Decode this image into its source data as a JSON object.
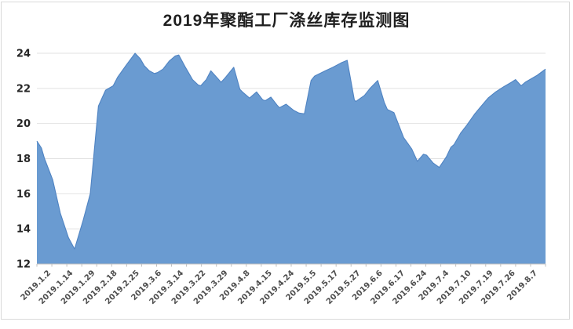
{
  "chart_data": {
    "type": "area",
    "title": "2019年聚酯工厂涤丝库存监测图",
    "xlabel": "",
    "ylabel": "",
    "ylim": [
      12,
      24
    ],
    "y_ticks": [
      12,
      14,
      16,
      18,
      20,
      22,
      24
    ],
    "grid": true,
    "legend_position": "none",
    "categories": [
      "2019.1.2",
      "2019.1.14",
      "2019.1.29",
      "2019.2.18",
      "2019.2.25",
      "2019.3.6",
      "2019.3.14",
      "2019.3.22",
      "2019.3.29",
      "2019.4.8",
      "2019.4.15",
      "2019.4.24",
      "2019.5.5",
      "2019.5.17",
      "2019.5.27",
      "2019.6.6",
      "2019.6.17",
      "2019.6.24",
      "2019.7.4",
      "2019.7.10",
      "2019.7.19",
      "2019.7.26",
      "2019.8.7"
    ],
    "series": [
      {
        "name": "涤丝库存",
        "points": [
          [
            0.0,
            19.0
          ],
          [
            0.009,
            18.6
          ],
          [
            0.015,
            18.0
          ],
          [
            0.031,
            16.8
          ],
          [
            0.046,
            14.9
          ],
          [
            0.062,
            13.5
          ],
          [
            0.074,
            12.85
          ],
          [
            0.091,
            14.5
          ],
          [
            0.105,
            16.0
          ],
          [
            0.121,
            21.0
          ],
          [
            0.135,
            21.9
          ],
          [
            0.15,
            22.15
          ],
          [
            0.159,
            22.65
          ],
          [
            0.175,
            23.3
          ],
          [
            0.193,
            24.0
          ],
          [
            0.203,
            23.7
          ],
          [
            0.211,
            23.3
          ],
          [
            0.221,
            23.0
          ],
          [
            0.231,
            22.85
          ],
          [
            0.237,
            22.9
          ],
          [
            0.248,
            23.1
          ],
          [
            0.26,
            23.55
          ],
          [
            0.272,
            23.85
          ],
          [
            0.279,
            23.9
          ],
          [
            0.291,
            23.25
          ],
          [
            0.299,
            22.85
          ],
          [
            0.306,
            22.5
          ],
          [
            0.317,
            22.2
          ],
          [
            0.322,
            22.15
          ],
          [
            0.333,
            22.5
          ],
          [
            0.342,
            23.0
          ],
          [
            0.356,
            22.55
          ],
          [
            0.362,
            22.35
          ],
          [
            0.37,
            22.6
          ],
          [
            0.387,
            23.2
          ],
          [
            0.399,
            21.95
          ],
          [
            0.404,
            21.8
          ],
          [
            0.418,
            21.45
          ],
          [
            0.432,
            21.8
          ],
          [
            0.444,
            21.35
          ],
          [
            0.449,
            21.3
          ],
          [
            0.46,
            21.5
          ],
          [
            0.472,
            21.05
          ],
          [
            0.477,
            20.9
          ],
          [
            0.49,
            21.1
          ],
          [
            0.505,
            20.75
          ],
          [
            0.515,
            20.6
          ],
          [
            0.526,
            20.55
          ],
          [
            0.539,
            22.45
          ],
          [
            0.546,
            22.7
          ],
          [
            0.567,
            23.0
          ],
          [
            0.582,
            23.2
          ],
          [
            0.598,
            23.45
          ],
          [
            0.61,
            23.6
          ],
          [
            0.624,
            21.35
          ],
          [
            0.627,
            21.25
          ],
          [
            0.644,
            21.6
          ],
          [
            0.655,
            22.0
          ],
          [
            0.67,
            22.45
          ],
          [
            0.683,
            21.2
          ],
          [
            0.689,
            20.8
          ],
          [
            0.702,
            20.62
          ],
          [
            0.721,
            19.2
          ],
          [
            0.737,
            18.55
          ],
          [
            0.748,
            17.85
          ],
          [
            0.76,
            18.25
          ],
          [
            0.766,
            18.2
          ],
          [
            0.779,
            17.75
          ],
          [
            0.791,
            17.5
          ],
          [
            0.805,
            18.1
          ],
          [
            0.814,
            18.65
          ],
          [
            0.82,
            18.8
          ],
          [
            0.833,
            19.45
          ],
          [
            0.845,
            19.9
          ],
          [
            0.861,
            20.55
          ],
          [
            0.871,
            20.9
          ],
          [
            0.887,
            21.45
          ],
          [
            0.902,
            21.8
          ],
          [
            0.918,
            22.1
          ],
          [
            0.933,
            22.35
          ],
          [
            0.941,
            22.5
          ],
          [
            0.952,
            22.15
          ],
          [
            0.96,
            22.35
          ],
          [
            0.975,
            22.6
          ],
          [
            0.984,
            22.75
          ],
          [
            1.0,
            23.1
          ]
        ]
      }
    ],
    "colors": {
      "area_fill": "#6a9bd1",
      "area_edge": "#4f83c2",
      "gridline": "#e2e2e2",
      "axis_line": "#bfbfbf",
      "x_label": "#4d4d4d",
      "y_label": "#262626",
      "title": "#1f1f1f",
      "frame_border": "#d9d9d9"
    }
  }
}
